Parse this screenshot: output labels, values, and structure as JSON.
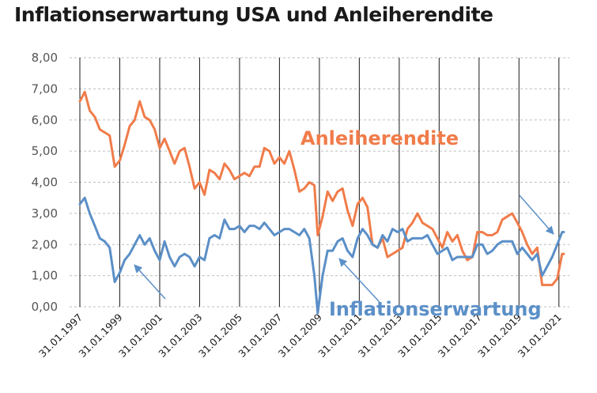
{
  "chart_data": {
    "type": "line",
    "title": "Inflationserwartung USA und Anleiherendite",
    "xlabel": "",
    "ylabel": "",
    "ylim": [
      0,
      8
    ],
    "xlim": [
      "1997-01-31",
      "2021-04-30"
    ],
    "grid": true,
    "yticks": [
      "0,00",
      "1,00",
      "2,00",
      "3,00",
      "4,00",
      "5,00",
      "6,00",
      "7,00",
      "8,00"
    ],
    "xticks": [
      "31.01.1997",
      "31.01.1999",
      "31.01.2001",
      "31.01.2003",
      "31.01.2005",
      "31.01.2007",
      "31.01.2009",
      "31.01.2011",
      "31.01.2013",
      "31.01.2015",
      "31.01.2017",
      "31.01.2019",
      "31.01.2021"
    ],
    "colors": {
      "Anleiherendite": "#f07c4a",
      "Inflationserwartung": "#5b8fc7",
      "arrow": "#5b8fc7"
    },
    "series": [
      {
        "name": "Anleiherendite",
        "points": [
          [
            "1997-01-31",
            6.6
          ],
          [
            "1997-04-30",
            6.9
          ],
          [
            "1997-07-31",
            6.3
          ],
          [
            "1997-10-31",
            6.1
          ],
          [
            "1998-01-31",
            5.7
          ],
          [
            "1998-04-30",
            5.6
          ],
          [
            "1998-07-31",
            5.5
          ],
          [
            "1998-10-31",
            4.5
          ],
          [
            "1999-01-31",
            4.7
          ],
          [
            "1999-04-30",
            5.2
          ],
          [
            "1999-07-31",
            5.8
          ],
          [
            "1999-10-31",
            6.0
          ],
          [
            "2000-01-31",
            6.6
          ],
          [
            "2000-04-30",
            6.1
          ],
          [
            "2000-07-31",
            6.0
          ],
          [
            "2000-10-31",
            5.7
          ],
          [
            "2001-01-31",
            5.1
          ],
          [
            "2001-04-30",
            5.4
          ],
          [
            "2001-07-31",
            5.0
          ],
          [
            "2001-10-31",
            4.6
          ],
          [
            "2002-01-31",
            5.0
          ],
          [
            "2002-04-30",
            5.1
          ],
          [
            "2002-07-31",
            4.5
          ],
          [
            "2002-10-31",
            3.8
          ],
          [
            "2003-01-31",
            4.0
          ],
          [
            "2003-04-30",
            3.6
          ],
          [
            "2003-07-31",
            4.4
          ],
          [
            "2003-10-31",
            4.3
          ],
          [
            "2004-01-31",
            4.1
          ],
          [
            "2004-04-30",
            4.6
          ],
          [
            "2004-07-31",
            4.4
          ],
          [
            "2004-10-31",
            4.1
          ],
          [
            "2005-01-31",
            4.2
          ],
          [
            "2005-04-30",
            4.3
          ],
          [
            "2005-07-31",
            4.2
          ],
          [
            "2005-10-31",
            4.5
          ],
          [
            "2006-01-31",
            4.5
          ],
          [
            "2006-04-30",
            5.1
          ],
          [
            "2006-07-31",
            5.0
          ],
          [
            "2006-10-31",
            4.6
          ],
          [
            "2007-01-31",
            4.8
          ],
          [
            "2007-04-30",
            4.6
          ],
          [
            "2007-07-31",
            5.0
          ],
          [
            "2007-10-31",
            4.4
          ],
          [
            "2008-01-31",
            3.7
          ],
          [
            "2008-04-30",
            3.8
          ],
          [
            "2008-07-31",
            4.0
          ],
          [
            "2008-10-31",
            3.9
          ],
          [
            "2008-12-31",
            2.3
          ],
          [
            "2009-03-31",
            2.9
          ],
          [
            "2009-06-30",
            3.7
          ],
          [
            "2009-09-30",
            3.4
          ],
          [
            "2009-12-31",
            3.7
          ],
          [
            "2010-03-31",
            3.8
          ],
          [
            "2010-06-30",
            3.1
          ],
          [
            "2010-09-30",
            2.6
          ],
          [
            "2010-12-31",
            3.3
          ],
          [
            "2011-03-31",
            3.5
          ],
          [
            "2011-06-30",
            3.2
          ],
          [
            "2011-09-30",
            2.0
          ],
          [
            "2011-12-31",
            1.9
          ],
          [
            "2012-03-31",
            2.2
          ],
          [
            "2012-06-30",
            1.6
          ],
          [
            "2012-09-30",
            1.7
          ],
          [
            "2012-12-31",
            1.8
          ],
          [
            "2013-03-31",
            1.9
          ],
          [
            "2013-06-30",
            2.5
          ],
          [
            "2013-09-30",
            2.7
          ],
          [
            "2013-12-31",
            3.0
          ],
          [
            "2014-03-31",
            2.7
          ],
          [
            "2014-06-30",
            2.6
          ],
          [
            "2014-09-30",
            2.5
          ],
          [
            "2014-12-31",
            2.2
          ],
          [
            "2015-03-31",
            1.9
          ],
          [
            "2015-06-30",
            2.4
          ],
          [
            "2015-09-30",
            2.1
          ],
          [
            "2015-12-31",
            2.3
          ],
          [
            "2016-03-31",
            1.8
          ],
          [
            "2016-06-30",
            1.5
          ],
          [
            "2016-09-30",
            1.6
          ],
          [
            "2016-12-31",
            2.4
          ],
          [
            "2017-03-31",
            2.4
          ],
          [
            "2017-06-30",
            2.3
          ],
          [
            "2017-09-30",
            2.3
          ],
          [
            "2017-12-31",
            2.4
          ],
          [
            "2018-03-31",
            2.8
          ],
          [
            "2018-06-30",
            2.9
          ],
          [
            "2018-09-30",
            3.0
          ],
          [
            "2018-12-31",
            2.7
          ],
          [
            "2019-03-31",
            2.4
          ],
          [
            "2019-06-30",
            2.0
          ],
          [
            "2019-09-30",
            1.7
          ],
          [
            "2019-12-31",
            1.9
          ],
          [
            "2020-03-31",
            0.7
          ],
          [
            "2020-06-30",
            0.7
          ],
          [
            "2020-09-30",
            0.7
          ],
          [
            "2020-12-31",
            0.9
          ],
          [
            "2021-03-31",
            1.7
          ],
          [
            "2021-04-30",
            1.7
          ]
        ]
      },
      {
        "name": "Inflationserwartung",
        "points": [
          [
            "1997-01-31",
            3.3
          ],
          [
            "1997-04-30",
            3.5
          ],
          [
            "1997-07-31",
            3.0
          ],
          [
            "1997-10-31",
            2.6
          ],
          [
            "1998-01-31",
            2.2
          ],
          [
            "1998-04-30",
            2.1
          ],
          [
            "1998-07-31",
            1.9
          ],
          [
            "1998-10-31",
            0.8
          ],
          [
            "1999-01-31",
            1.1
          ],
          [
            "1999-04-30",
            1.5
          ],
          [
            "1999-07-31",
            1.7
          ],
          [
            "1999-10-31",
            2.0
          ],
          [
            "2000-01-31",
            2.3
          ],
          [
            "2000-04-30",
            2.0
          ],
          [
            "2000-07-31",
            2.2
          ],
          [
            "2000-10-31",
            1.8
          ],
          [
            "2001-01-31",
            1.5
          ],
          [
            "2001-04-30",
            2.1
          ],
          [
            "2001-07-31",
            1.6
          ],
          [
            "2001-10-31",
            1.3
          ],
          [
            "2002-01-31",
            1.6
          ],
          [
            "2002-04-30",
            1.7
          ],
          [
            "2002-07-31",
            1.6
          ],
          [
            "2002-10-31",
            1.3
          ],
          [
            "2003-01-31",
            1.6
          ],
          [
            "2003-04-30",
            1.5
          ],
          [
            "2003-07-31",
            2.2
          ],
          [
            "2003-10-31",
            2.3
          ],
          [
            "2004-01-31",
            2.2
          ],
          [
            "2004-04-30",
            2.8
          ],
          [
            "2004-07-31",
            2.5
          ],
          [
            "2004-10-31",
            2.5
          ],
          [
            "2005-01-31",
            2.6
          ],
          [
            "2005-04-30",
            2.4
          ],
          [
            "2005-07-31",
            2.6
          ],
          [
            "2005-10-31",
            2.6
          ],
          [
            "2006-01-31",
            2.5
          ],
          [
            "2006-04-30",
            2.7
          ],
          [
            "2006-07-31",
            2.5
          ],
          [
            "2006-10-31",
            2.3
          ],
          [
            "2007-01-31",
            2.4
          ],
          [
            "2007-04-30",
            2.5
          ],
          [
            "2007-07-31",
            2.5
          ],
          [
            "2007-10-31",
            2.4
          ],
          [
            "2008-01-31",
            2.3
          ],
          [
            "2008-04-30",
            2.5
          ],
          [
            "2008-07-31",
            2.2
          ],
          [
            "2008-10-31",
            1.0
          ],
          [
            "2008-12-31",
            -0.2
          ],
          [
            "2009-03-31",
            1.0
          ],
          [
            "2009-06-30",
            1.8
          ],
          [
            "2009-09-30",
            1.8
          ],
          [
            "2009-12-31",
            2.1
          ],
          [
            "2010-03-31",
            2.2
          ],
          [
            "2010-06-30",
            1.8
          ],
          [
            "2010-09-30",
            1.6
          ],
          [
            "2010-12-31",
            2.2
          ],
          [
            "2011-03-31",
            2.5
          ],
          [
            "2011-06-30",
            2.3
          ],
          [
            "2011-09-30",
            2.0
          ],
          [
            "2011-12-31",
            1.9
          ],
          [
            "2012-03-31",
            2.3
          ],
          [
            "2012-06-30",
            2.1
          ],
          [
            "2012-09-30",
            2.5
          ],
          [
            "2012-12-31",
            2.4
          ],
          [
            "2013-03-31",
            2.5
          ],
          [
            "2013-06-30",
            2.1
          ],
          [
            "2013-09-30",
            2.2
          ],
          [
            "2013-12-31",
            2.2
          ],
          [
            "2014-03-31",
            2.2
          ],
          [
            "2014-06-30",
            2.3
          ],
          [
            "2014-09-30",
            2.0
          ],
          [
            "2014-12-31",
            1.7
          ],
          [
            "2015-03-31",
            1.8
          ],
          [
            "2015-06-30",
            1.9
          ],
          [
            "2015-09-30",
            1.5
          ],
          [
            "2015-12-31",
            1.6
          ],
          [
            "2016-03-31",
            1.6
          ],
          [
            "2016-06-30",
            1.6
          ],
          [
            "2016-09-30",
            1.6
          ],
          [
            "2016-12-31",
            2.0
          ],
          [
            "2017-03-31",
            2.0
          ],
          [
            "2017-06-30",
            1.7
          ],
          [
            "2017-09-30",
            1.8
          ],
          [
            "2017-12-31",
            2.0
          ],
          [
            "2018-03-31",
            2.1
          ],
          [
            "2018-06-30",
            2.1
          ],
          [
            "2018-09-30",
            2.1
          ],
          [
            "2018-12-31",
            1.7
          ],
          [
            "2019-03-31",
            1.9
          ],
          [
            "2019-06-30",
            1.7
          ],
          [
            "2019-09-30",
            1.5
          ],
          [
            "2019-12-31",
            1.7
          ],
          [
            "2020-03-31",
            1.0
          ],
          [
            "2020-06-30",
            1.3
          ],
          [
            "2020-09-30",
            1.6
          ],
          [
            "2020-12-31",
            2.0
          ],
          [
            "2021-03-31",
            2.4
          ],
          [
            "2021-04-30",
            2.4
          ]
        ]
      }
    ],
    "annotations": [
      {
        "text": "Anleiherendite",
        "series": "Anleiherendite",
        "color": "#f07c4a"
      },
      {
        "text": "Inflationserwartung",
        "series": "Inflationserwartung",
        "color": "#5b8fc7"
      }
    ]
  }
}
